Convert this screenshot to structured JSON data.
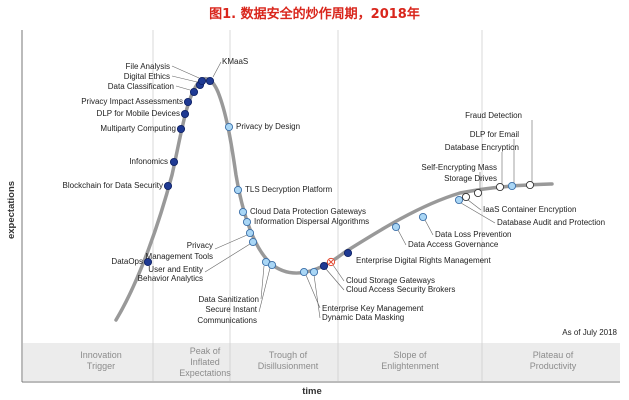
{
  "title": "图1. 数据安全的炒作周期，2018年",
  "chart_data": {
    "type": "scatter",
    "title": "图1. 数据安全的炒作周期，2018年",
    "xlabel": "time",
    "ylabel": "expectations",
    "note": "As of July 2018",
    "phases": [
      [
        "Innovation",
        "Trigger"
      ],
      [
        "Peak of",
        "Inflated",
        "Expectations"
      ],
      [
        "Trough of",
        "Disillusionment"
      ],
      [
        "Slope of",
        "Enlightenment"
      ],
      [
        "Plateau of",
        "Productivity"
      ]
    ],
    "legend_colors": {
      "dark_blue": "#1f3a93",
      "light_blue": "#a9d6f5",
      "white": "#ffffff",
      "red_x": "#e34a33"
    },
    "points": [
      {
        "name": "DataOps",
        "color": "dark_blue"
      },
      {
        "name": "Blockchain for Data Security",
        "color": "dark_blue"
      },
      {
        "name": "Infonomics",
        "color": "dark_blue"
      },
      {
        "name": "Multiparty Computing",
        "color": "dark_blue"
      },
      {
        "name": "DLP for Mobile Devices",
        "color": "dark_blue"
      },
      {
        "name": "Privacy Impact Assessments",
        "color": "dark_blue"
      },
      {
        "name": "Data Classification",
        "color": "dark_blue"
      },
      {
        "name": "Digital Ethics",
        "color": "dark_blue"
      },
      {
        "name": "File Analysis",
        "color": "dark_blue"
      },
      {
        "name": "KMaaS",
        "color": "dark_blue"
      },
      {
        "name": "Privacy by Design",
        "color": "light_blue"
      },
      {
        "name": "TLS Decryption Platform",
        "color": "light_blue"
      },
      {
        "name": "Cloud Data Protection Gateways",
        "color": "light_blue"
      },
      {
        "name": "Information Dispersal Algorithms",
        "color": "light_blue"
      },
      {
        "name": "Privacy Management Tools",
        "color": "light_blue"
      },
      {
        "name": "User and Entity Behavior Analytics",
        "color": "light_blue"
      },
      {
        "name": "Data Sanitization",
        "color": "light_blue"
      },
      {
        "name": "Secure Instant Communications",
        "color": "light_blue"
      },
      {
        "name": "Enterprise Key Management",
        "color": "light_blue"
      },
      {
        "name": "Dynamic Data Masking",
        "color": "light_blue"
      },
      {
        "name": "Cloud Storage Gateways",
        "color": "red_x"
      },
      {
        "name": "Cloud Access Security Brokers",
        "color": "dark_blue"
      },
      {
        "name": "Enterprise Digital Rights Management",
        "color": "dark_blue"
      },
      {
        "name": "Data Access Governance",
        "color": "light_blue"
      },
      {
        "name": "Data Loss Prevention",
        "color": "light_blue"
      },
      {
        "name": "Database Audit and Protection",
        "color": "light_blue"
      },
      {
        "name": "IaaS Container Encryption",
        "color": "white"
      },
      {
        "name": "Self-Encrypting Mass Storage Drives",
        "color": "white"
      },
      {
        "name": "Database Encryption",
        "color": "white"
      },
      {
        "name": "DLP for Email",
        "color": "light_blue"
      },
      {
        "name": "Fraud Detection",
        "color": "white"
      }
    ]
  }
}
